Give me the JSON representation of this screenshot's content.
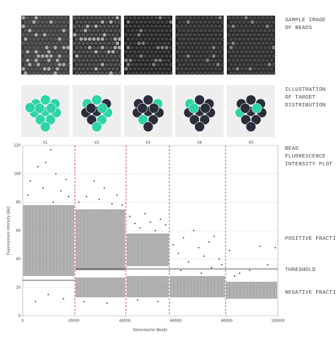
{
  "panel_labels": {
    "images": [
      "SAMPLE IMAGE",
      "OF BEADS"
    ],
    "illustration": [
      "ILLUSTRATION",
      "OF TARGET",
      "DISTRIBUTION"
    ],
    "plot": [
      "BEAD",
      "FLUORESCENCE",
      "INTENSITY PLOT"
    ],
    "positive": "POSITIVE FRACTION",
    "threshold": "THRESHOLD",
    "negative": "NEGATIVE FRACTION"
  },
  "columns": [
    "V1",
    "V2",
    "V3",
    "V4",
    "V5"
  ],
  "chart_data": {
    "type": "scatter",
    "x_label": "Nanoreactor Beads",
    "y_label": "Fluorescence Intensity [AU]",
    "xlim": [
      0,
      100000
    ],
    "ylim": [
      0,
      120
    ],
    "xticks": [
      0,
      20000,
      40000,
      60000,
      80000,
      100000
    ],
    "yticks": [
      0,
      20,
      40,
      60,
      80,
      100,
      120
    ],
    "grid": true,
    "dividers": [
      20500,
      40500,
      57500,
      79500
    ],
    "divider_color": "#d62728",
    "threshold": {
      "x0": [
        0,
        20500
      ],
      "x1": [
        20500,
        100000
      ],
      "y": [
        25,
        33
      ]
    },
    "bands": {
      "x0": [
        0,
        20500,
        20500,
        40500,
        40500,
        57500,
        79500
      ],
      "x1": [
        20500,
        40500,
        40500,
        57500,
        57500,
        79500,
        100000
      ],
      "y0": [
        28,
        32,
        13,
        35,
        13,
        13,
        12
      ],
      "y1": [
        78,
        75,
        27,
        58,
        28,
        28,
        24
      ]
    },
    "series": [
      {
        "color": "#111111",
        "x": [
          3000,
          6000,
          9000,
          11000,
          13000,
          15000,
          17000,
          2000,
          8000,
          18000,
          12000,
          5000,
          10000,
          16000,
          22000,
          25000,
          28000,
          30000,
          32000,
          35000,
          37000,
          39000,
          24000,
          33000,
          42000,
          44000,
          46000,
          48000,
          50000,
          52000,
          54000,
          56000,
          45000,
          53000,
          59000,
          61000,
          63000,
          65000,
          67000,
          69000,
          71000,
          73000,
          75000,
          77000,
          78000,
          62000,
          70000,
          74000,
          81000,
          85000,
          89000,
          93000,
          96000,
          99000,
          83000
        ],
        "y": [
          95,
          105,
          108,
          117,
          100,
          88,
          96,
          85,
          90,
          84,
          80,
          10,
          15,
          12,
          80,
          84,
          95,
          82,
          90,
          79,
          85,
          78,
          10,
          9,
          70,
          65,
          62,
          72,
          66,
          60,
          68,
          64,
          11,
          10,
          50,
          44,
          55,
          38,
          60,
          48,
          42,
          52,
          56,
          40,
          36,
          32,
          30,
          34,
          46,
          30,
          32,
          49,
          36,
          48,
          28
        ]
      }
    ]
  }
}
